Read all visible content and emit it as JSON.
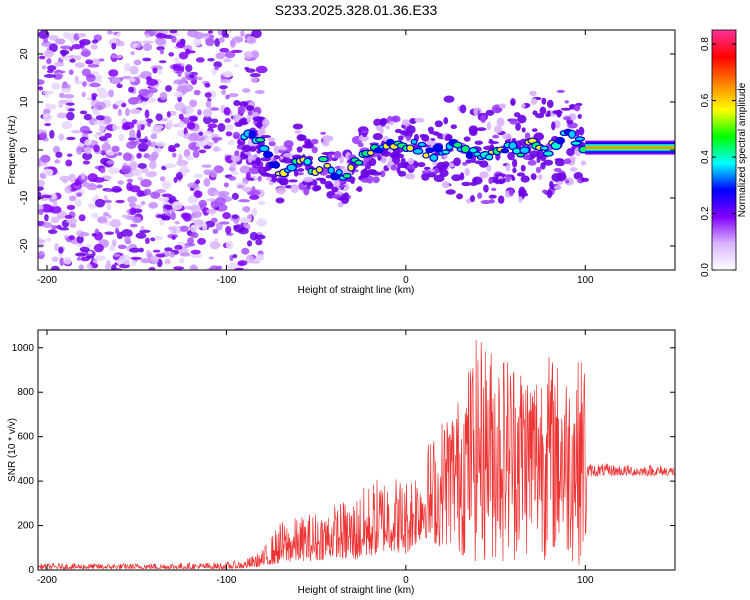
{
  "figure": {
    "title": "S233.2025.328.01.36.E33"
  },
  "chart_data": [
    {
      "type": "heatmap",
      "title": "S233.2025.328.01.36.E33",
      "xlabel": "Height of straight line (km)",
      "ylabel": "Frequency (Hz)",
      "xlim": [
        -205,
        150
      ],
      "ylim": [
        -25,
        25
      ],
      "xticks": [
        -200,
        -100,
        0,
        100
      ],
      "xtick_labels": [
        "-200",
        "-100",
        "0",
        "100"
      ],
      "yticks": [
        -20,
        -10,
        0,
        10,
        20
      ],
      "ytick_labels": [
        "-20",
        "-10",
        "0",
        "10",
        "20"
      ],
      "colorbar": {
        "label": "Normalized spectral amplitude",
        "range": [
          0.0,
          0.85
        ],
        "ticks": [
          0.0,
          0.2,
          0.4,
          0.6,
          0.8
        ],
        "tick_labels": [
          "0.0",
          "0.2",
          "0.4",
          "0.6",
          "0.8"
        ],
        "colormap": [
          "#ffffff",
          "#d9b3ff",
          "#8000ff",
          "#0000ff",
          "#00ffff",
          "#00ff00",
          "#ffff00",
          "#ff8000",
          "#ff0000",
          "#ff3399"
        ]
      },
      "ridge": {
        "x": [
          -95,
          -85,
          -80,
          -75,
          -70,
          -65,
          -60,
          -55,
          -50,
          -45,
          -40,
          -35,
          -30,
          -25,
          -20,
          -15,
          -10,
          -5,
          0,
          5,
          10,
          15,
          20,
          25,
          30,
          35,
          40,
          45,
          50,
          55,
          60,
          65,
          70,
          75,
          80,
          85,
          90,
          95,
          100,
          110,
          120,
          130,
          140,
          150
        ],
        "y": [
          4,
          3.5,
          1,
          -2,
          -5,
          -4,
          -1,
          -3,
          -4,
          -2,
          -5,
          -6,
          -3,
          -2,
          -1,
          0,
          2,
          1,
          0,
          1,
          0,
          -1,
          0,
          1,
          0,
          -1,
          0,
          -2,
          -1,
          0,
          1,
          -1,
          2,
          1,
          0,
          2,
          3,
          2,
          0.5,
          0.5,
          0.5,
          0.5,
          0.5,
          0.5
        ]
      }
    },
    {
      "type": "line",
      "xlabel": "Height of straight line (km)",
      "ylabel": "SNR (10 * v/v)",
      "xlim": [
        -205,
        150
      ],
      "ylim": [
        0,
        1080
      ],
      "xticks": [
        -200,
        -100,
        0,
        100
      ],
      "xtick_labels": [
        "-200",
        "-100",
        "0",
        "100"
      ],
      "yticks": [
        0,
        200,
        400,
        600,
        800,
        1000
      ],
      "ytick_labels": [
        "0",
        "200",
        "400",
        "600",
        "800",
        "1000"
      ],
      "series": [
        {
          "name": "SNR",
          "color": "#ee3333",
          "envelope_x": [
            -205,
            -150,
            -100,
            -90,
            -80,
            -70,
            -60,
            -50,
            -40,
            -30,
            -20,
            -10,
            0,
            10,
            20,
            30,
            40,
            50,
            60,
            70,
            80,
            90,
            100,
            101,
            110,
            120,
            130,
            140,
            150
          ],
          "envelope_min": [
            5,
            5,
            5,
            8,
            15,
            30,
            40,
            40,
            60,
            40,
            60,
            90,
            70,
            150,
            100,
            60,
            20,
            20,
            30,
            50,
            40,
            30,
            20,
            420,
            425,
            425,
            425,
            425,
            425
          ],
          "envelope_max": [
            30,
            30,
            35,
            45,
            90,
            220,
            240,
            270,
            300,
            330,
            400,
            450,
            420,
            560,
            680,
            790,
            1060,
            1000,
            980,
            920,
            980,
            900,
            980,
            480,
            480,
            475,
            475,
            475,
            470
          ]
        }
      ]
    }
  ]
}
